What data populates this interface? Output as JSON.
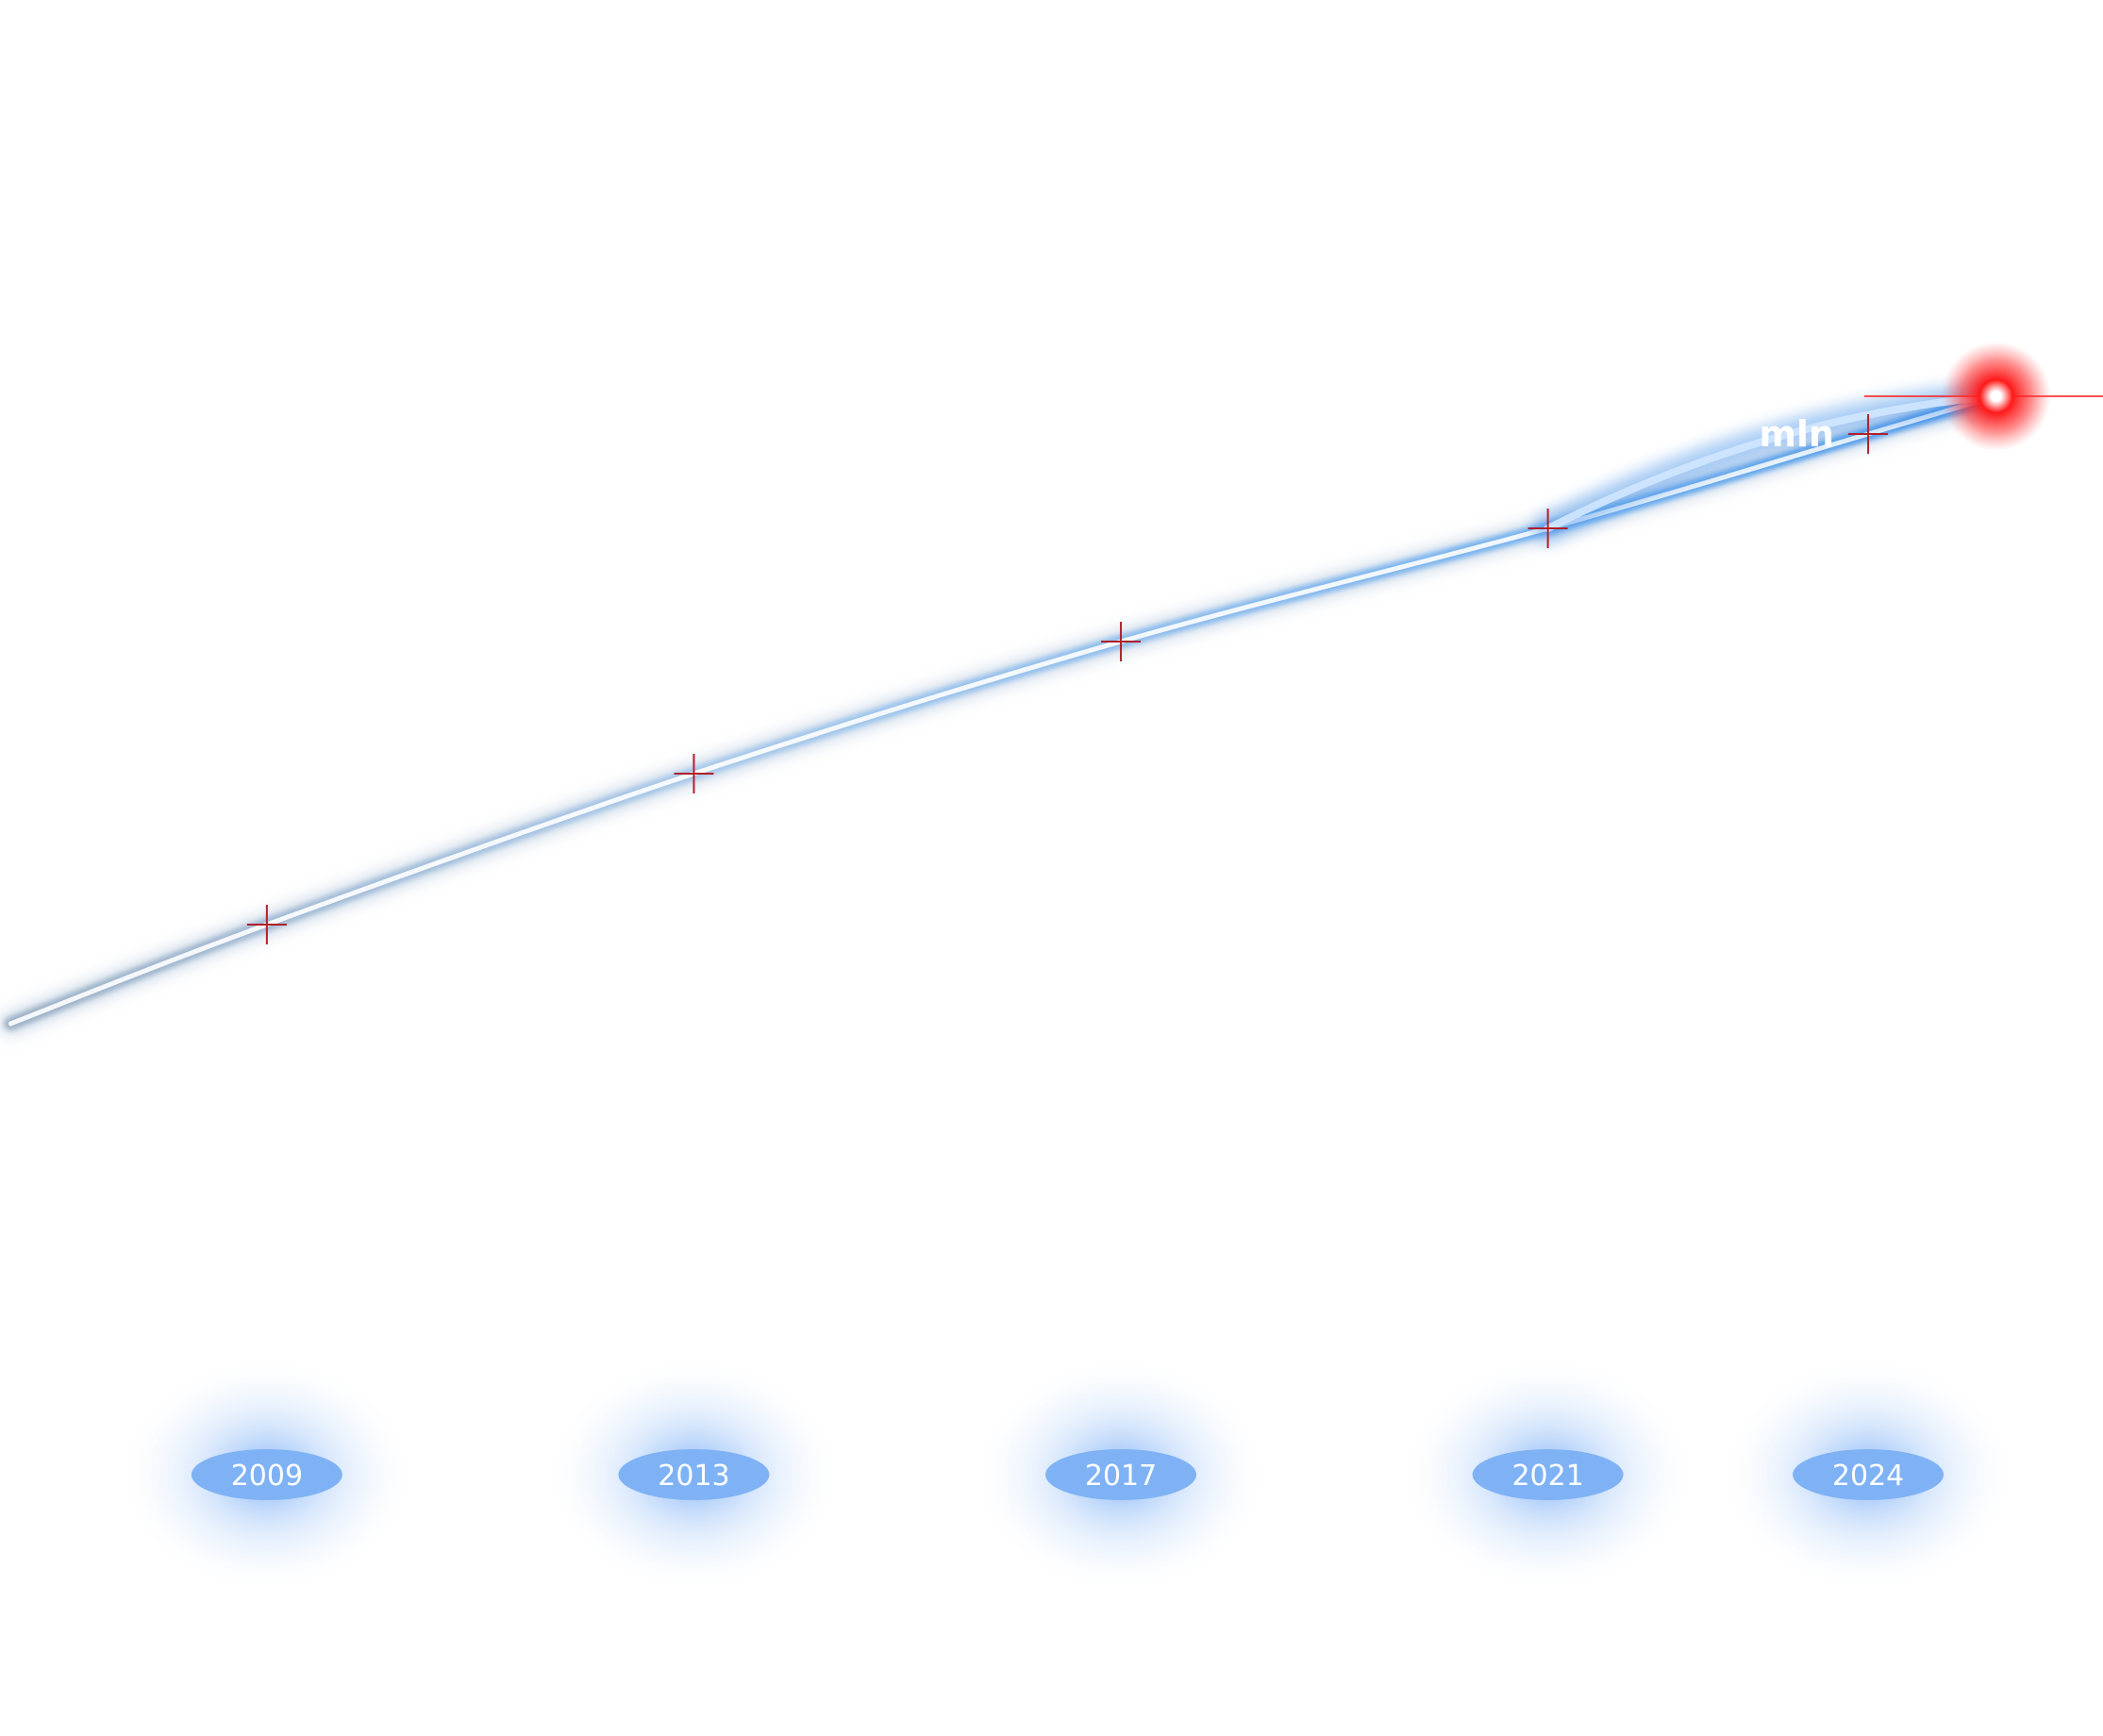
{
  "chart_data": {
    "type": "line",
    "title": "",
    "xlabel": "",
    "ylabel": "",
    "categories": [
      "2009",
      "2013",
      "2017",
      "2021",
      "2024"
    ],
    "x": [
      2009,
      2013,
      2017,
      2021,
      2024
    ],
    "series": [
      {
        "values": [
          42,
          58,
          72,
          84,
          94
        ],
        "marker_style": "crosshair",
        "color": "#b0202a"
      }
    ],
    "visible_point_labels": [
      {
        "index": 4,
        "text": "mln"
      }
    ],
    "end_glow": {
      "year": 2025.2,
      "value": 98,
      "color": "#ff1a1a"
    },
    "trail_color": "#3f8ee8",
    "year_badge_color": "#7fb2f5",
    "ylim": [
      0,
      140
    ],
    "xlim": [
      2006.5,
      2026.2
    ],
    "grid": false,
    "legend": "none"
  }
}
